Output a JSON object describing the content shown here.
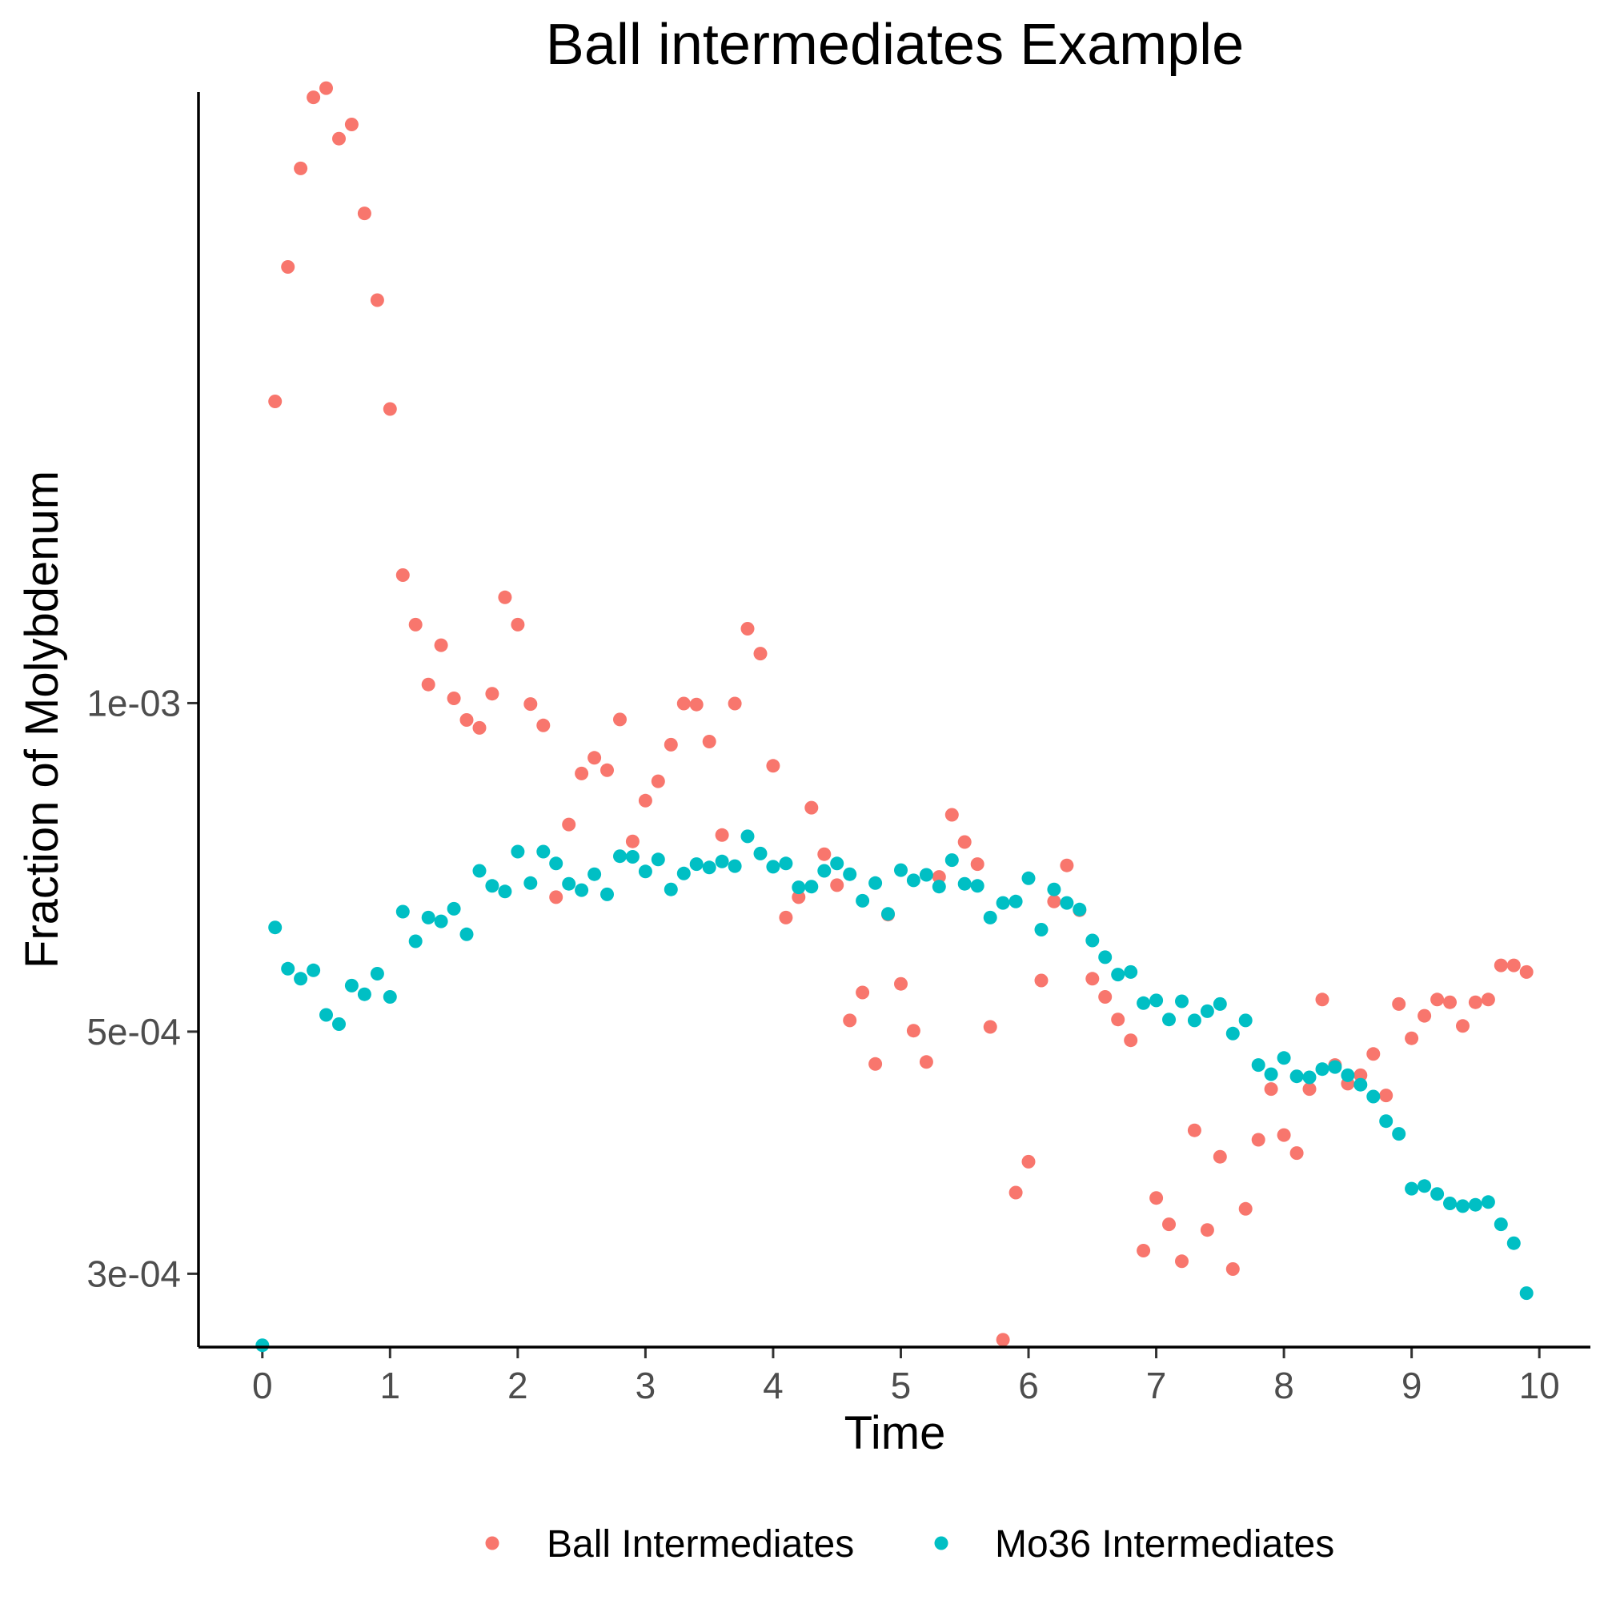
{
  "chart_data": {
    "type": "scatter",
    "title": "Ball intermediates Example",
    "xlabel": "Time",
    "ylabel": "Fraction of Molybdenum",
    "y_scale": "log",
    "xlim": [
      -0.5,
      10.4
    ],
    "ylim": [
      0.000257,
      0.00363
    ],
    "x_ticks": [
      0,
      1,
      2,
      3,
      4,
      5,
      6,
      7,
      8,
      9,
      10
    ],
    "x_tick_labels": [
      "0",
      "1",
      "2",
      "3",
      "4",
      "5",
      "6",
      "7",
      "8",
      "9",
      "10"
    ],
    "y_ticks": [
      0.0003,
      0.0005,
      0.001
    ],
    "y_tick_labels": [
      "3e-04",
      "5e-04",
      "1e-03"
    ],
    "grid": false,
    "legend_position": "bottom",
    "series": [
      {
        "name": "Ball Intermediates",
        "color": "#F8766D",
        "points": [
          [
            0.1,
            0.00189
          ],
          [
            0.2,
            0.00251
          ],
          [
            0.3,
            0.00309
          ],
          [
            0.4,
            0.00359
          ],
          [
            0.5,
            0.00366
          ],
          [
            0.6,
            0.00329
          ],
          [
            0.7,
            0.00339
          ],
          [
            0.8,
            0.00281
          ],
          [
            0.9,
            0.00234
          ],
          [
            1.0,
            0.00186
          ],
          [
            1.1,
            0.00131
          ],
          [
            1.2,
            0.00118
          ],
          [
            1.3,
            0.00104
          ],
          [
            1.4,
            0.00113
          ],
          [
            1.5,
            0.00101
          ],
          [
            1.6,
            0.000965
          ],
          [
            1.7,
            0.000949
          ],
          [
            1.8,
            0.00102
          ],
          [
            1.9,
            0.00125
          ],
          [
            2.0,
            0.00118
          ],
          [
            2.1,
            0.000998
          ],
          [
            2.2,
            0.000954
          ],
          [
            2.3,
            0.000664
          ],
          [
            2.4,
            0.000774
          ],
          [
            2.5,
            0.000862
          ],
          [
            2.6,
            0.000891
          ],
          [
            2.7,
            0.000868
          ],
          [
            2.8,
            0.000966
          ],
          [
            2.9,
            0.000747
          ],
          [
            3.0,
            0.000814
          ],
          [
            3.1,
            0.000848
          ],
          [
            3.2,
            0.000916
          ],
          [
            3.3,
            0.000999
          ],
          [
            3.4,
            0.000997
          ],
          [
            3.5,
            0.000922
          ],
          [
            3.6,
            0.000757
          ],
          [
            3.7,
            0.000999
          ],
          [
            3.8,
            0.00117
          ],
          [
            3.9,
            0.00111
          ],
          [
            4.0,
            0.000876
          ],
          [
            4.1,
            0.000636
          ],
          [
            4.2,
            0.000664
          ],
          [
            4.3,
            0.000802
          ],
          [
            4.4,
            0.000727
          ],
          [
            4.5,
            0.000681
          ],
          [
            4.6,
            0.000512
          ],
          [
            4.7,
            0.000543
          ],
          [
            4.8,
            0.000467
          ],
          [
            4.9,
            0.00064
          ],
          [
            5.0,
            0.000553
          ],
          [
            5.1,
            0.000501
          ],
          [
            5.2,
            0.000469
          ],
          [
            5.3,
            0.000693
          ],
          [
            5.4,
            0.00079
          ],
          [
            5.5,
            0.000746
          ],
          [
            5.6,
            0.000712
          ],
          [
            5.7,
            0.000505
          ],
          [
            5.8,
            0.000261
          ],
          [
            5.9,
            0.000356
          ],
          [
            6.0,
            0.00038
          ],
          [
            6.1,
            0.000557
          ],
          [
            6.2,
            0.000658
          ],
          [
            6.3,
            0.00071
          ],
          [
            6.4,
            0.000646
          ],
          [
            6.5,
            0.000559
          ],
          [
            6.6,
            0.000538
          ],
          [
            6.7,
            0.000513
          ],
          [
            6.8,
            0.000491
          ],
          [
            6.9,
            0.000315
          ],
          [
            7.0,
            0.000352
          ],
          [
            7.1,
            0.000333
          ],
          [
            7.2,
            0.000308
          ],
          [
            7.3,
            0.000406
          ],
          [
            7.4,
            0.000329
          ],
          [
            7.5,
            0.000384
          ],
          [
            7.6,
            0.000303
          ],
          [
            7.7,
            0.000344
          ],
          [
            7.8,
            0.000398
          ],
          [
            7.9,
            0.000443
          ],
          [
            8.0,
            0.000402
          ],
          [
            8.1,
            0.000387
          ],
          [
            8.2,
            0.000443
          ],
          [
            8.3,
            0.000535
          ],
          [
            8.4,
            0.000466
          ],
          [
            8.5,
            0.000448
          ],
          [
            8.6,
            0.000456
          ],
          [
            8.7,
            0.000477
          ],
          [
            8.8,
            0.000437
          ],
          [
            8.9,
            0.00053
          ],
          [
            9.0,
            0.000493
          ],
          [
            9.1,
            0.000517
          ],
          [
            9.2,
            0.000535
          ],
          [
            9.3,
            0.000532
          ],
          [
            9.4,
            0.000506
          ],
          [
            9.5,
            0.000532
          ],
          [
            9.6,
            0.000535
          ],
          [
            9.7,
            0.000575
          ],
          [
            9.8,
            0.000575
          ],
          [
            9.9,
            0.000567
          ]
        ]
      },
      {
        "name": "Mo36 Intermediates",
        "color": "#00BFC4",
        "points": [
          [
            0.0,
            0.000258
          ],
          [
            0.1,
            0.000623
          ],
          [
            0.2,
            0.000571
          ],
          [
            0.3,
            0.000559
          ],
          [
            0.4,
            0.000569
          ],
          [
            0.5,
            0.000518
          ],
          [
            0.6,
            0.000508
          ],
          [
            0.7,
            0.000551
          ],
          [
            0.8,
            0.000541
          ],
          [
            0.9,
            0.000565
          ],
          [
            1.0,
            0.000538
          ],
          [
            1.1,
            0.000644
          ],
          [
            1.2,
            0.000605
          ],
          [
            1.3,
            0.000636
          ],
          [
            1.4,
            0.000631
          ],
          [
            1.5,
            0.000648
          ],
          [
            1.6,
            0.000614
          ],
          [
            1.7,
            0.000702
          ],
          [
            1.8,
            0.00068
          ],
          [
            1.9,
            0.000672
          ],
          [
            2.0,
            0.000731
          ],
          [
            2.1,
            0.000684
          ],
          [
            2.2,
            0.000731
          ],
          [
            2.3,
            0.000713
          ],
          [
            2.4,
            0.000683
          ],
          [
            2.5,
            0.000674
          ],
          [
            2.6,
            0.000697
          ],
          [
            2.7,
            0.000668
          ],
          [
            2.8,
            0.000724
          ],
          [
            2.9,
            0.000723
          ],
          [
            3.0,
            0.000701
          ],
          [
            3.1,
            0.000719
          ],
          [
            3.2,
            0.000675
          ],
          [
            3.3,
            0.000698
          ],
          [
            3.4,
            0.000712
          ],
          [
            3.5,
            0.000707
          ],
          [
            3.6,
            0.000716
          ],
          [
            3.7,
            0.000709
          ],
          [
            3.8,
            0.000755
          ],
          [
            3.9,
            0.000728
          ],
          [
            4.0,
            0.000708
          ],
          [
            4.1,
            0.000713
          ],
          [
            4.2,
            0.000678
          ],
          [
            4.3,
            0.000679
          ],
          [
            4.4,
            0.000702
          ],
          [
            4.5,
            0.000713
          ],
          [
            4.6,
            0.000697
          ],
          [
            4.7,
            0.000659
          ],
          [
            4.8,
            0.000684
          ],
          [
            4.9,
            0.000641
          ],
          [
            5.0,
            0.000703
          ],
          [
            5.1,
            0.000688
          ],
          [
            5.2,
            0.000696
          ],
          [
            5.3,
            0.000679
          ],
          [
            5.4,
            0.000718
          ],
          [
            5.5,
            0.000683
          ],
          [
            5.6,
            0.00068
          ],
          [
            5.7,
            0.000636
          ],
          [
            5.8,
            0.000656
          ],
          [
            5.9,
            0.000658
          ],
          [
            6.0,
            0.000691
          ],
          [
            6.1,
            0.00062
          ],
          [
            6.2,
            0.000675
          ],
          [
            6.3,
            0.000656
          ],
          [
            6.4,
            0.000647
          ],
          [
            6.5,
            0.000606
          ],
          [
            6.6,
            0.000585
          ],
          [
            6.7,
            0.000564
          ],
          [
            6.8,
            0.000567
          ],
          [
            6.9,
            0.000531
          ],
          [
            7.0,
            0.000534
          ],
          [
            7.1,
            0.000513
          ],
          [
            7.2,
            0.000533
          ],
          [
            7.3,
            0.000512
          ],
          [
            7.4,
            0.000522
          ],
          [
            7.5,
            0.00053
          ],
          [
            7.6,
            0.000498
          ],
          [
            7.7,
            0.000512
          ],
          [
            7.8,
            0.000466
          ],
          [
            7.9,
            0.000457
          ],
          [
            8.0,
            0.000473
          ],
          [
            8.1,
            0.000455
          ],
          [
            8.2,
            0.000454
          ],
          [
            8.3,
            0.000462
          ],
          [
            8.4,
            0.000464
          ],
          [
            8.5,
            0.000456
          ],
          [
            8.6,
            0.000447
          ],
          [
            8.7,
            0.000436
          ],
          [
            8.8,
            0.000414
          ],
          [
            8.9,
            0.000403
          ],
          [
            9.0,
            0.000359
          ],
          [
            9.1,
            0.000361
          ],
          [
            9.2,
            0.000355
          ],
          [
            9.3,
            0.000348
          ],
          [
            9.4,
            0.000346
          ],
          [
            9.5,
            0.000347
          ],
          [
            9.6,
            0.000349
          ],
          [
            9.7,
            0.000333
          ],
          [
            9.8,
            0.00032
          ],
          [
            9.9,
            0.000288
          ]
        ]
      }
    ]
  }
}
